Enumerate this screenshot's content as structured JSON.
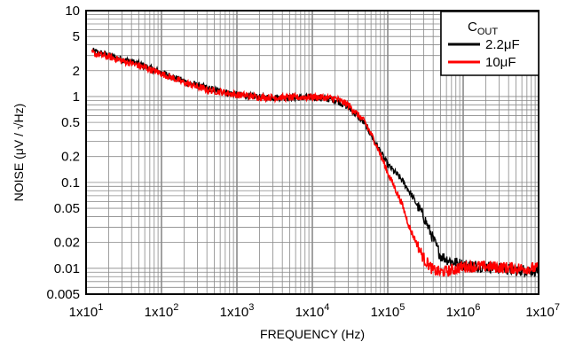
{
  "chart_data": {
    "type": "line",
    "title": "",
    "xlabel": "FREQUENCY (Hz)",
    "ylabel": "NOISE (μV / √Hz)",
    "x_scale": "log",
    "y_scale": "log",
    "xlim": [
      10,
      10000000
    ],
    "ylim": [
      0.005,
      10
    ],
    "x_ticks": [
      {
        "value": 10,
        "label": "1x10"
      },
      {
        "value": 100,
        "label": "1x10"
      },
      {
        "value": 1000,
        "label": "1x10"
      },
      {
        "value": 10000,
        "label": "1x10"
      },
      {
        "value": 100000,
        "label": "1x10"
      },
      {
        "value": 1000000,
        "label": "1x10"
      },
      {
        "value": 10000000,
        "label": "1x10"
      }
    ],
    "x_tick_exponents": [
      "1",
      "2",
      "3",
      "4",
      "5",
      "6",
      "7"
    ],
    "y_ticks": [
      {
        "value": 10,
        "label": "10"
      },
      {
        "value": 5,
        "label": "5"
      },
      {
        "value": 2,
        "label": "2"
      },
      {
        "value": 1,
        "label": "1"
      },
      {
        "value": 0.5,
        "label": "0.5"
      },
      {
        "value": 0.2,
        "label": "0.2"
      },
      {
        "value": 0.1,
        "label": "0.1"
      },
      {
        "value": 0.05,
        "label": "0.05"
      },
      {
        "value": 0.02,
        "label": "0.02"
      },
      {
        "value": 0.01,
        "label": "0.01"
      },
      {
        "value": 0.005,
        "label": "0.005"
      }
    ],
    "grid": true,
    "legend": {
      "title_main": "C",
      "title_sub": "OUT",
      "placement": "top-right"
    },
    "series": [
      {
        "name": "2.2μF",
        "color": "#000000",
        "x": [
          12,
          20,
          50,
          100,
          200,
          400,
          1000,
          2000,
          5000,
          10000,
          20000,
          30000,
          50000,
          70000,
          100000,
          150000,
          200000,
          300000,
          400000,
          500000,
          700000,
          1000000,
          2000000,
          5000000,
          10000000
        ],
        "y": [
          3.4,
          3.0,
          2.4,
          1.9,
          1.5,
          1.25,
          1.05,
          0.98,
          0.97,
          0.98,
          0.92,
          0.75,
          0.48,
          0.28,
          0.16,
          0.11,
          0.075,
          0.04,
          0.022,
          0.014,
          0.012,
          0.011,
          0.0105,
          0.0095,
          0.0095
        ]
      },
      {
        "name": "10μF",
        "color": "#ff0000",
        "x": [
          12,
          20,
          50,
          100,
          200,
          400,
          1000,
          2000,
          5000,
          10000,
          20000,
          30000,
          50000,
          70000,
          100000,
          150000,
          200000,
          300000,
          400000,
          500000,
          700000,
          1000000,
          2000000,
          5000000,
          10000000
        ],
        "y": [
          3.2,
          2.9,
          2.3,
          1.85,
          1.45,
          1.2,
          1.05,
          0.98,
          0.97,
          0.99,
          0.95,
          0.8,
          0.5,
          0.28,
          0.13,
          0.06,
          0.028,
          0.013,
          0.0095,
          0.009,
          0.0095,
          0.0105,
          0.0105,
          0.01,
          0.01
        ]
      }
    ]
  }
}
